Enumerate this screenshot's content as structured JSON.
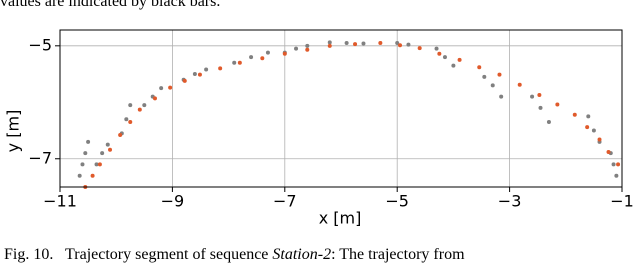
{
  "header": {
    "text": "values are indicated by black bars."
  },
  "chart_data": {
    "type": "scatter",
    "xlabel": "x [m]",
    "ylabel": "y [m]",
    "xlim": [
      -11,
      -1
    ],
    "ylim": [
      -7.5,
      -4.72
    ],
    "xticks": [
      {
        "value": -11,
        "label": "−11"
      },
      {
        "value": -9,
        "label": "−9"
      },
      {
        "value": -7,
        "label": "−7"
      },
      {
        "value": -5,
        "label": "−5"
      },
      {
        "value": -3,
        "label": "−3"
      },
      {
        "value": -1,
        "label": "−1"
      }
    ],
    "yticks": [
      {
        "value": -5,
        "label": "−5"
      },
      {
        "value": -7,
        "label": "−7"
      }
    ],
    "grid": true,
    "series": [
      {
        "color": "#808080",
        "x": [
          -10.65,
          -10.6,
          -10.55,
          -10.5,
          -10.35,
          -10.25,
          -10.15,
          -9.9,
          -9.82,
          -9.75,
          -9.5,
          -9.35,
          -9.2,
          -8.8,
          -8.6,
          -8.4,
          -7.9,
          -7.6,
          -7.3,
          -7.0,
          -6.8,
          -6.6,
          -6.2,
          -5.9,
          -5.6,
          -5.0,
          -4.8,
          -4.3,
          -4.15,
          -4.0,
          -3.45,
          -3.3,
          -3.15,
          -2.6,
          -2.45,
          -2.3,
          -1.6,
          -1.5,
          -1.4,
          -1.2,
          -1.15,
          -1.1
        ],
        "values": [
          -7.3,
          -7.1,
          -6.9,
          -6.7,
          -7.1,
          -6.9,
          -6.75,
          -6.55,
          -6.3,
          -6.05,
          -6.05,
          -5.9,
          -5.75,
          -5.6,
          -5.5,
          -5.42,
          -5.3,
          -5.2,
          -5.12,
          -5.12,
          -5.05,
          -5.0,
          -4.94,
          -4.95,
          -4.96,
          -4.95,
          -4.98,
          -5.05,
          -5.2,
          -5.35,
          -5.55,
          -5.7,
          -5.9,
          -5.9,
          -6.1,
          -6.35,
          -6.25,
          -6.5,
          -6.7,
          -6.9,
          -7.1,
          -7.3
        ]
      },
      {
        "color": "#e05a2b",
        "x": [
          -10.55,
          -10.42,
          -10.29,
          -10.11,
          -9.93,
          -9.75,
          -9.58,
          -9.31,
          -9.04,
          -8.78,
          -8.51,
          -8.15,
          -7.8,
          -7.4,
          -7.0,
          -6.6,
          -6.2,
          -5.75,
          -5.3,
          -4.95,
          -4.6,
          -4.25,
          -3.89,
          -3.54,
          -3.18,
          -2.82,
          -2.47,
          -2.15,
          -1.84,
          -1.62,
          -1.4,
          -1.24,
          -1.07
        ],
        "values": [
          -7.5,
          -7.3,
          -7.1,
          -6.84,
          -6.58,
          -6.35,
          -6.13,
          -5.93,
          -5.74,
          -5.62,
          -5.51,
          -5.4,
          -5.3,
          -5.22,
          -5.14,
          -5.07,
          -5.0,
          -4.97,
          -4.95,
          -4.99,
          -5.04,
          -5.14,
          -5.25,
          -5.38,
          -5.51,
          -5.69,
          -5.87,
          -6.04,
          -6.22,
          -6.44,
          -6.66,
          -6.88,
          -7.1
        ]
      }
    ]
  },
  "caption": {
    "lead": "Fig. 10.   Trajectory segment of sequence ",
    "italic": "Station-2",
    "rest": ": The trajectory from"
  }
}
